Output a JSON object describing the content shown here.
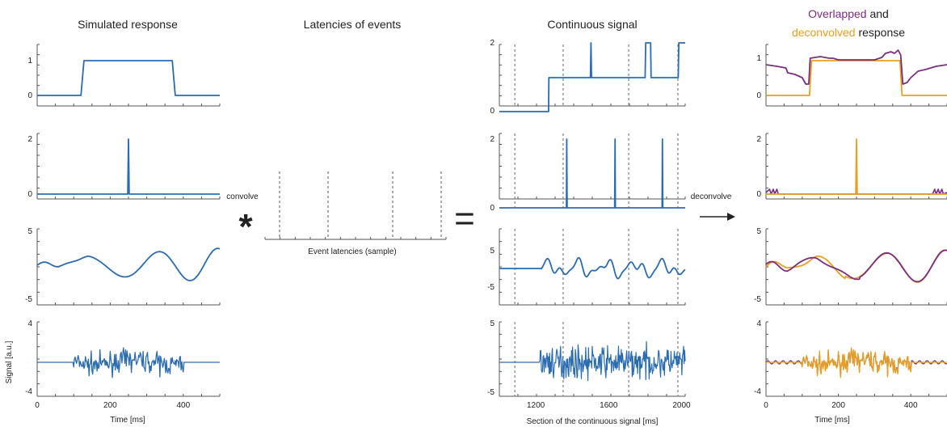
{
  "columns": {
    "simulated": {
      "title": "Simulated response",
      "panels": [
        {
          "type": "boxcar",
          "yticks": [
            "1",
            "0"
          ]
        },
        {
          "type": "stick",
          "yticks": [
            "2",
            "0"
          ]
        },
        {
          "type": "smooth",
          "yticks": [
            "5",
            "-5"
          ]
        },
        {
          "type": "noise",
          "yticks": [
            "4",
            "-4"
          ]
        }
      ],
      "xticks": [
        "0",
        "200",
        "400"
      ],
      "xlabel": "Time [ms]",
      "ylabel": "Signal [a.u.]"
    },
    "latencies": {
      "title": "Latencies of events",
      "xlabel": "Event latencies (sample)"
    },
    "continuous": {
      "title": "Continuous signal",
      "panels": [
        {
          "yticks": [
            "2",
            "0"
          ]
        },
        {
          "yticks": [
            "2",
            "0"
          ]
        },
        {
          "yticks": [
            "5",
            "-5"
          ]
        },
        {
          "yticks": [
            "5",
            "-5"
          ]
        }
      ],
      "xticks": [
        "1200",
        "1600",
        "2000"
      ],
      "xlabel": "Section of the continuous signal [ms]"
    },
    "deconvolved": {
      "title_parts": [
        {
          "text": "Overlapped",
          "color": "#7b2d80"
        },
        {
          "text": " and",
          "color": "#222222"
        },
        {
          "text": "deconvolved",
          "color": "#e8a020"
        },
        {
          "text": " response",
          "color": "#222222"
        }
      ],
      "panels": [
        {
          "yticks": [
            "1",
            "0"
          ]
        },
        {
          "yticks": [
            "2",
            "0"
          ]
        },
        {
          "yticks": [
            "5",
            "-5"
          ]
        },
        {
          "yticks": [
            "4",
            "-4"
          ]
        }
      ],
      "xticks": [
        "0",
        "200",
        "400"
      ],
      "xlabel": "Time [ms]"
    }
  },
  "operators": {
    "convolve_label": "convolve",
    "convolve_symbol": "*",
    "equals_symbol": "=",
    "deconvolve_label": "deconvolve",
    "arrow_symbol": "⟶"
  },
  "colors": {
    "blue": "#2b6cb0",
    "purple": "#7b2d80",
    "orange": "#e8a020",
    "axis": "#555555",
    "event_line": "#888888"
  }
}
